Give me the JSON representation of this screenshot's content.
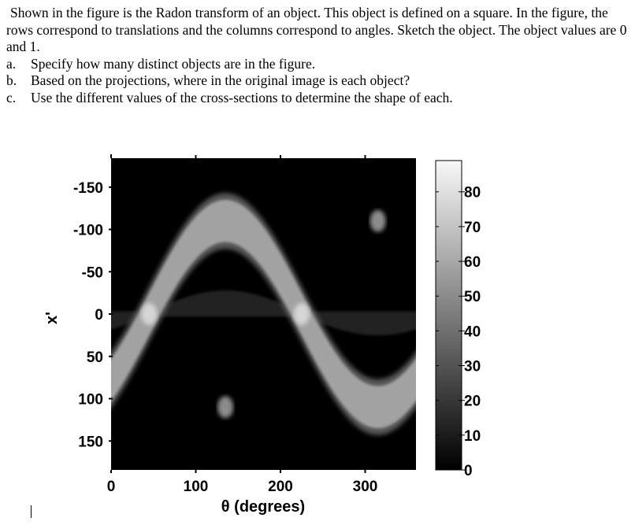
{
  "question": {
    "intro": "Shown in the figure is the Radon transform of an object. This object is defined on a square. In the figure, the rows correspond to translations and the columns correspond to angles. Sketch the object.  The object values are 0 and 1.",
    "items": [
      {
        "label": "a.",
        "text": "Specify how many distinct objects are in the figure."
      },
      {
        "label": "b.",
        "text": "Based on the projections, where in the original image is each object?"
      },
      {
        "label": "c.",
        "text": "Use the different values of the cross-sections to determine the shape of each."
      }
    ]
  },
  "chart_data": {
    "type": "heatmap",
    "title": "",
    "description": "Radon transform (sinogram) of an object; grayscale colormap",
    "xlabel": "θ (degrees)",
    "ylabel": "x'",
    "xlim": [
      0,
      360
    ],
    "ylim": [
      -185,
      185
    ],
    "y_inverted": true,
    "x_ticks": [
      0,
      100,
      200,
      300
    ],
    "x_tick_labels": [
      "0",
      "100",
      "200",
      "300"
    ],
    "y_ticks": [
      -150,
      -100,
      -50,
      0,
      50,
      100,
      150
    ],
    "y_tick_labels": [
      "-150",
      "-100",
      "-50",
      "0",
      "50",
      "100",
      "150"
    ],
    "colorbar": {
      "range": [
        0,
        89
      ],
      "ticks": [
        0,
        10,
        20,
        30,
        40,
        50,
        60,
        70,
        80
      ],
      "tick_labels": [
        "0",
        "10",
        "20",
        "30",
        "40",
        "50",
        "60",
        "70",
        "80"
      ],
      "colormap": "gray"
    },
    "series": [
      {
        "name": "bright wide band",
        "amplitude": 110,
        "phase_deg": 135,
        "width": 50,
        "intensity": 58,
        "peak_intensity": 89
      },
      {
        "name": "dim thin band",
        "amplitude": 115,
        "phase_deg": 315,
        "width": 30,
        "intensity": 22
      },
      {
        "name": "faint central band",
        "center": 0,
        "width": 8,
        "intensity": 12
      }
    ],
    "grid": false
  }
}
